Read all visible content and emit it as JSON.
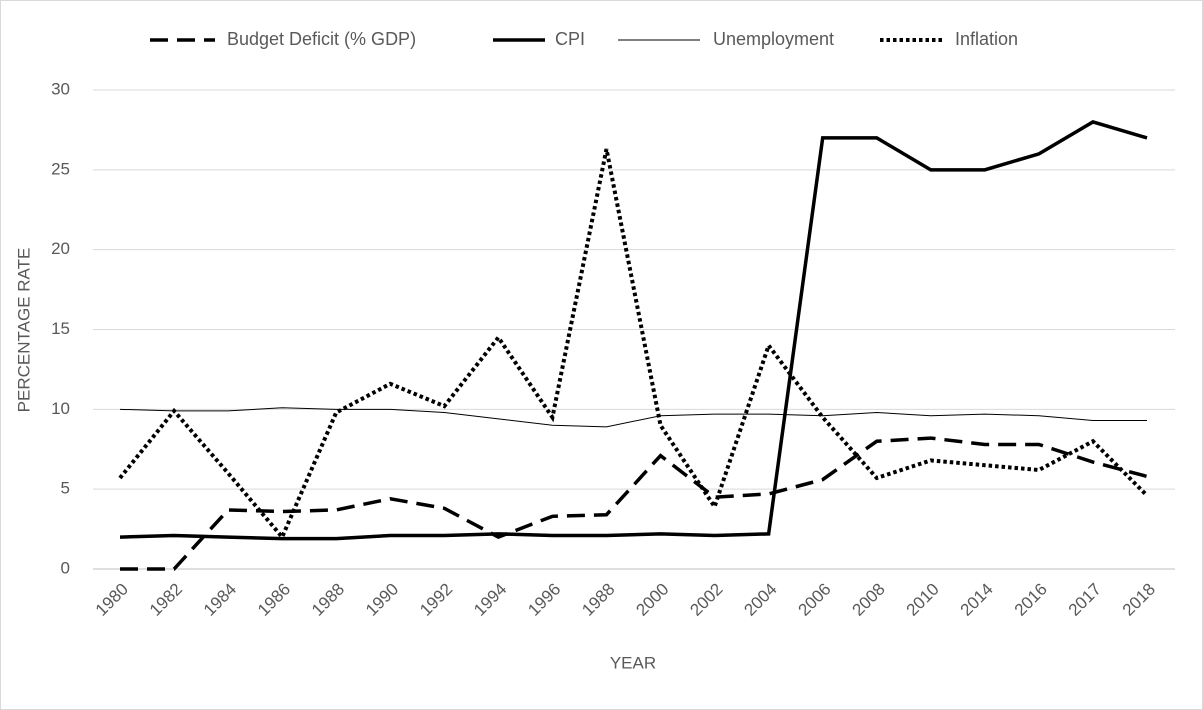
{
  "chart_data": {
    "type": "line",
    "x_label": "YEAR",
    "y_label": "PERCENTAGE RATE",
    "categories": [
      "1980",
      "1982",
      "1984",
      "1986",
      "1988",
      "1990",
      "1992",
      "1994",
      "1996",
      "1988",
      "2000",
      "2002",
      "2004",
      "2006",
      "2008",
      "2010",
      "2014",
      "2016",
      "2017",
      "2018"
    ],
    "series": [
      {
        "name": "Budget Deficit (% GDP)",
        "color": "#000000",
        "style": "dashed",
        "values": [
          0,
          0,
          3.7,
          3.6,
          3.7,
          4.4,
          3.8,
          2.0,
          3.3,
          3.4,
          7.1,
          4.5,
          4.7,
          5.6,
          8.0,
          8.2,
          7.8,
          7.8,
          6.7,
          5.8
        ]
      },
      {
        "name": "CPI",
        "color": "#000000",
        "style": "solid",
        "values": [
          2.0,
          2.1,
          2.0,
          1.9,
          1.9,
          2.1,
          2.1,
          2.2,
          2.1,
          2.1,
          2.2,
          2.1,
          2.2,
          27,
          27,
          25,
          25,
          26,
          28,
          27
        ]
      },
      {
        "name": "Unemployment",
        "color": "#000000",
        "style": "thin",
        "values": [
          10,
          9.9,
          9.9,
          10.1,
          10.0,
          10.0,
          9.8,
          9.4,
          9.0,
          8.9,
          9.6,
          9.7,
          9.7,
          9.6,
          9.8,
          9.6,
          9.7,
          9.6,
          9.3,
          9.3
        ]
      },
      {
        "name": "Inflation",
        "color": "#000000",
        "style": "dotted",
        "values": [
          5.7,
          9.9,
          6.0,
          2.0,
          9.8,
          11.6,
          10.2,
          14.5,
          9.5,
          26.3,
          9.0,
          3.9,
          14.0,
          9.5,
          5.7,
          6.8,
          6.5,
          6.2,
          8.0,
          4.6
        ]
      }
    ],
    "ylim": [
      0,
      30
    ],
    "yticks": [
      0,
      5,
      10,
      15,
      20,
      25,
      30
    ],
    "grid": true,
    "legend": "top"
  }
}
